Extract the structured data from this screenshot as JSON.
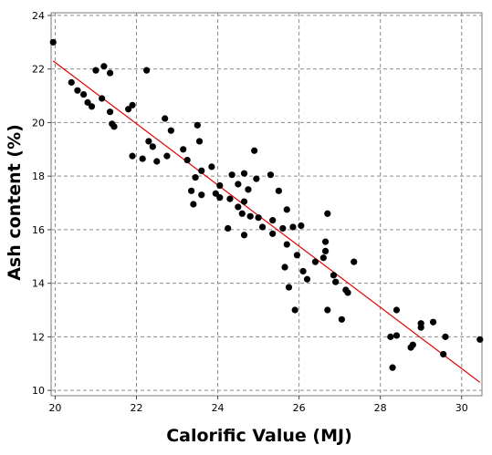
{
  "chart_data": {
    "type": "scatter",
    "xlabel": "Calorific Value (MJ)",
    "ylabel": "Ash content (%)",
    "xlim": [
      19.9,
      30.5
    ],
    "ylim": [
      9.8,
      24.1
    ],
    "xticks": [
      "20",
      "22",
      "24",
      "26",
      "28",
      "30"
    ],
    "yticks": [
      "10",
      "12",
      "14",
      "16",
      "18",
      "20",
      "22",
      "24"
    ],
    "grid": true,
    "legend": "none",
    "point_color": "#000000",
    "line_color": "#e60000",
    "trendline": {
      "start": [
        19.95,
        22.3
      ],
      "end": [
        30.45,
        10.3
      ]
    },
    "points": [
      [
        19.95,
        23.0
      ],
      [
        20.4,
        21.5
      ],
      [
        20.55,
        21.2
      ],
      [
        20.7,
        21.05
      ],
      [
        20.8,
        20.75
      ],
      [
        20.9,
        20.6
      ],
      [
        21.0,
        21.95
      ],
      [
        21.15,
        20.9
      ],
      [
        21.2,
        22.1
      ],
      [
        21.35,
        21.85
      ],
      [
        21.35,
        20.4
      ],
      [
        21.4,
        19.95
      ],
      [
        21.45,
        19.85
      ],
      [
        21.8,
        20.5
      ],
      [
        21.9,
        20.65
      ],
      [
        21.9,
        18.75
      ],
      [
        22.15,
        18.65
      ],
      [
        22.25,
        21.95
      ],
      [
        22.3,
        19.3
      ],
      [
        22.4,
        19.1
      ],
      [
        22.5,
        18.55
      ],
      [
        22.7,
        20.15
      ],
      [
        22.75,
        18.75
      ],
      [
        22.85,
        19.7
      ],
      [
        23.15,
        19.0
      ],
      [
        23.25,
        18.6
      ],
      [
        23.35,
        17.45
      ],
      [
        23.4,
        16.95
      ],
      [
        23.45,
        17.95
      ],
      [
        23.5,
        19.9
      ],
      [
        23.55,
        19.3
      ],
      [
        23.6,
        18.2
      ],
      [
        23.6,
        17.3
      ],
      [
        23.85,
        18.35
      ],
      [
        23.95,
        17.35
      ],
      [
        24.05,
        17.65
      ],
      [
        24.05,
        17.2
      ],
      [
        24.25,
        16.05
      ],
      [
        24.3,
        17.15
      ],
      [
        24.35,
        18.05
      ],
      [
        24.5,
        16.85
      ],
      [
        24.5,
        17.7
      ],
      [
        24.6,
        16.6
      ],
      [
        24.65,
        17.05
      ],
      [
        24.65,
        15.8
      ],
      [
        24.65,
        18.1
      ],
      [
        24.75,
        17.5
      ],
      [
        24.8,
        16.5
      ],
      [
        24.9,
        18.95
      ],
      [
        24.95,
        17.9
      ],
      [
        25.0,
        16.45
      ],
      [
        25.1,
        16.1
      ],
      [
        25.3,
        18.05
      ],
      [
        25.35,
        15.85
      ],
      [
        25.35,
        16.35
      ],
      [
        25.5,
        17.45
      ],
      [
        25.6,
        16.05
      ],
      [
        25.65,
        14.6
      ],
      [
        25.7,
        16.75
      ],
      [
        25.7,
        15.45
      ],
      [
        25.75,
        13.85
      ],
      [
        25.85,
        16.1
      ],
      [
        25.9,
        13.0
      ],
      [
        25.95,
        15.05
      ],
      [
        26.05,
        16.15
      ],
      [
        26.1,
        14.45
      ],
      [
        26.2,
        14.15
      ],
      [
        26.4,
        14.8
      ],
      [
        26.6,
        14.95
      ],
      [
        26.65,
        15.2
      ],
      [
        26.65,
        15.55
      ],
      [
        26.7,
        16.6
      ],
      [
        26.7,
        13.0
      ],
      [
        26.85,
        14.3
      ],
      [
        26.9,
        14.05
      ],
      [
        27.05,
        12.65
      ],
      [
        27.15,
        13.75
      ],
      [
        27.2,
        13.65
      ],
      [
        27.35,
        14.8
      ],
      [
        28.25,
        12.0
      ],
      [
        28.3,
        10.85
      ],
      [
        28.4,
        13.0
      ],
      [
        28.4,
        12.05
      ],
      [
        28.75,
        11.6
      ],
      [
        28.8,
        11.7
      ],
      [
        29.0,
        12.35
      ],
      [
        29.0,
        12.5
      ],
      [
        29.3,
        12.55
      ],
      [
        29.55,
        11.35
      ],
      [
        29.6,
        12.0
      ],
      [
        30.45,
        11.9
      ]
    ]
  }
}
